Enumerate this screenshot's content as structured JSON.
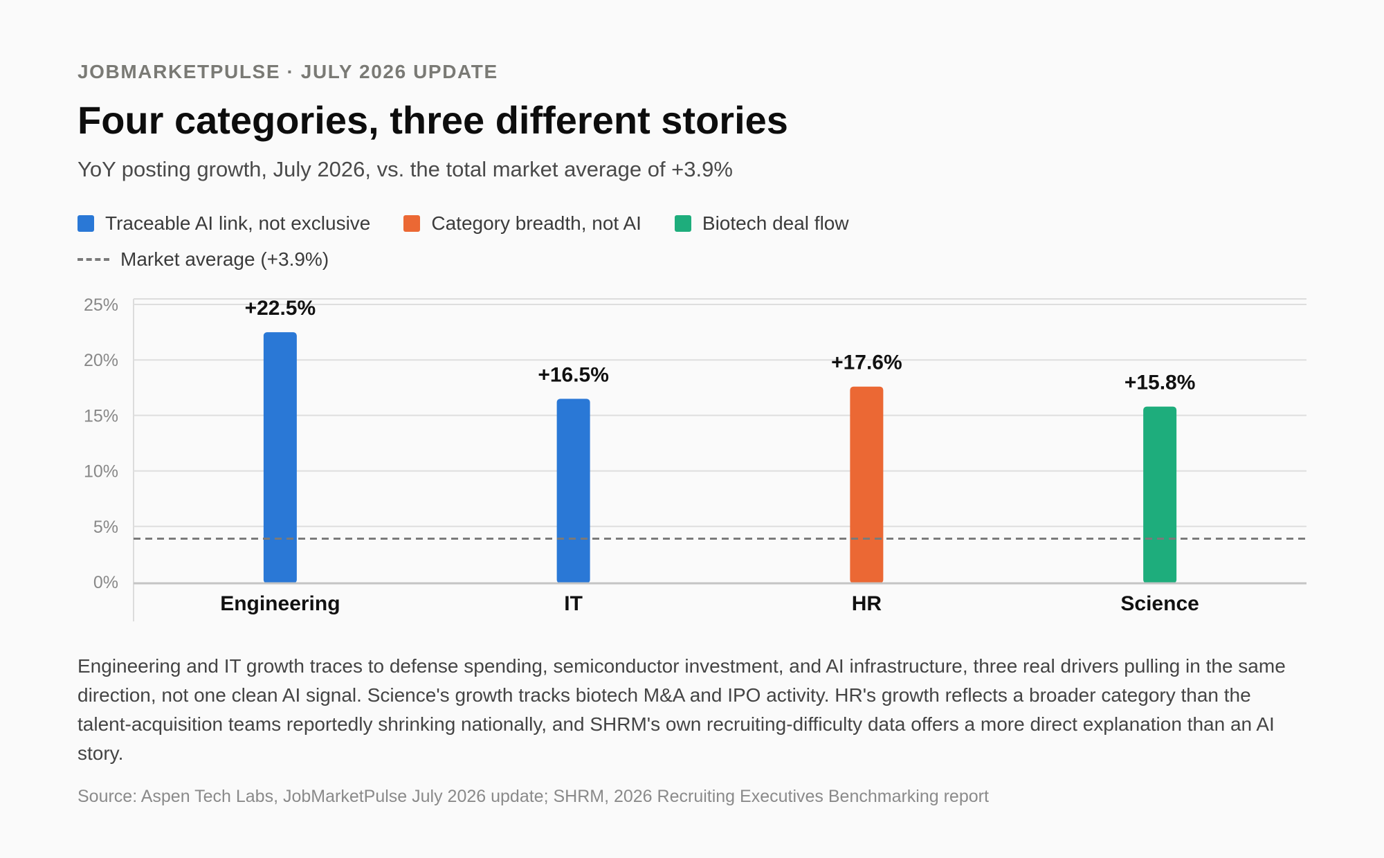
{
  "kicker": "JOBMARKETPULSE · JULY 2026 UPDATE",
  "title": "Four categories, three different stories",
  "subtitle": "YoY posting growth, July 2026, vs. the total market average of +3.9%",
  "legend": {
    "items": [
      {
        "label": "Traceable AI link, not exclusive",
        "color": "#2a78d6"
      },
      {
        "label": "Category breadth, not AI",
        "color": "#eb6834"
      },
      {
        "label": "Biotech deal flow",
        "color": "#1ead7c"
      }
    ],
    "average_label": "Market average (+3.9%)"
  },
  "chart_data": {
    "type": "bar",
    "categories": [
      "Engineering",
      "IT",
      "HR",
      "Science"
    ],
    "values": [
      22.5,
      16.5,
      17.6,
      15.8
    ],
    "value_labels": [
      "+22.5%",
      "+16.5%",
      "+17.6%",
      "+15.8%"
    ],
    "bar_colors": [
      "#2a78d6",
      "#2a78d6",
      "#eb6834",
      "#1ead7c"
    ],
    "reference_line": {
      "value": 3.9,
      "style": "dashed",
      "color": "#7a7a7a"
    },
    "y_ticks": [
      0,
      5,
      10,
      15,
      20,
      25
    ],
    "y_tick_labels": [
      "0%",
      "5%",
      "10%",
      "15%",
      "20%",
      "25%"
    ],
    "ylim": [
      0,
      25
    ],
    "grid": true,
    "title": "Four categories, three different stories",
    "xlabel": "",
    "ylabel": ""
  },
  "description": "Engineering and IT growth traces to defense spending, semiconductor investment, and AI infrastructure, three real drivers pulling in the same direction, not one clean AI signal. Science's growth tracks biotech M&A and IPO activity. HR's growth reflects a broader category than the talent-acquisition teams reportedly shrinking nationally, and SHRM's own recruiting-difficulty data offers a more direct explanation than an AI story.",
  "source": "Source: Aspen Tech Labs, JobMarketPulse July 2026 update; SHRM, 2026 Recruiting Executives Benchmarking report"
}
